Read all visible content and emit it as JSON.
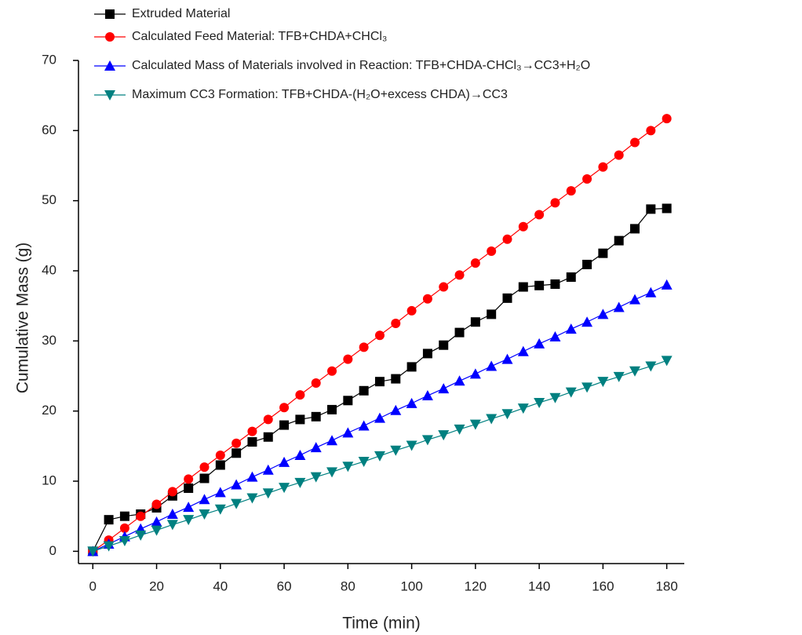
{
  "chart_data": {
    "type": "line",
    "x_label": "Time (min)",
    "y_label": "Cumulative Mass (g)",
    "x": [
      0,
      5,
      10,
      15,
      20,
      25,
      30,
      35,
      40,
      45,
      50,
      55,
      60,
      65,
      70,
      75,
      80,
      85,
      90,
      95,
      100,
      105,
      110,
      115,
      120,
      125,
      130,
      135,
      140,
      145,
      150,
      155,
      160,
      165,
      170,
      175,
      180
    ],
    "series": [
      {
        "name": "Extruded Material",
        "color": "#000000",
        "marker": "square",
        "values": [
          0,
          4.5,
          5.0,
          5.3,
          6.2,
          7.9,
          9.0,
          10.4,
          12.3,
          14.0,
          15.6,
          16.3,
          18.0,
          18.8,
          19.2,
          20.2,
          21.5,
          22.9,
          24.2,
          24.6,
          26.3,
          28.2,
          29.4,
          31.2,
          32.7,
          33.8,
          36.1,
          37.7,
          37.9,
          38.1,
          39.1,
          40.9,
          42.5,
          44.3,
          46.0,
          48.8,
          48.9
        ]
      },
      {
        "name": "Calculated Feed Material: TFB+CHDA+CHCl₃",
        "color": "#ff0000",
        "marker": "circle",
        "values": [
          0,
          1.6,
          3.3,
          5.0,
          6.7,
          8.5,
          10.3,
          12.0,
          13.7,
          15.4,
          17.1,
          18.8,
          20.5,
          22.3,
          24.0,
          25.7,
          27.4,
          29.1,
          30.8,
          32.5,
          34.3,
          36.0,
          37.7,
          39.4,
          41.1,
          42.8,
          44.5,
          46.3,
          48.0,
          49.7,
          51.4,
          53.1,
          54.8,
          56.5,
          58.3,
          60.0,
          61.7
        ]
      },
      {
        "name": "Calculated Mass of Materials involved in Reaction: TFB+CHDA-CHCl₃→CC3+H₂O",
        "color": "#0000ff",
        "marker": "triangle-up",
        "values": [
          0,
          1.05,
          2.1,
          3.2,
          4.2,
          5.3,
          6.3,
          7.4,
          8.4,
          9.5,
          10.6,
          11.6,
          12.7,
          13.7,
          14.8,
          15.8,
          16.9,
          17.9,
          19.0,
          20.1,
          21.1,
          22.2,
          23.2,
          24.3,
          25.3,
          26.4,
          27.4,
          28.5,
          29.6,
          30.6,
          31.7,
          32.7,
          33.8,
          34.8,
          35.9,
          36.9,
          38.0
        ]
      },
      {
        "name": "Maximum CC3 Formation: TFB+CHDA-(H₂O+excess CHDA)→CC3",
        "color": "#008080",
        "marker": "triangle-down",
        "values": [
          0,
          0.76,
          1.5,
          2.3,
          3.0,
          3.8,
          4.5,
          5.3,
          6.0,
          6.8,
          7.6,
          8.3,
          9.1,
          9.8,
          10.6,
          11.3,
          12.1,
          12.8,
          13.6,
          14.4,
          15.1,
          15.9,
          16.6,
          17.4,
          18.1,
          18.9,
          19.6,
          20.4,
          21.2,
          21.9,
          22.7,
          23.4,
          24.2,
          24.9,
          25.7,
          26.4,
          27.2
        ]
      }
    ],
    "xlim": [
      -4.5,
      185.5
    ],
    "ylim": [
      -1.75,
      70
    ],
    "xticks": [
      0,
      20,
      40,
      60,
      80,
      100,
      120,
      140,
      160,
      180
    ],
    "yticks": [
      0,
      10,
      20,
      30,
      40,
      50,
      60,
      70
    ],
    "legend": "top-left"
  }
}
